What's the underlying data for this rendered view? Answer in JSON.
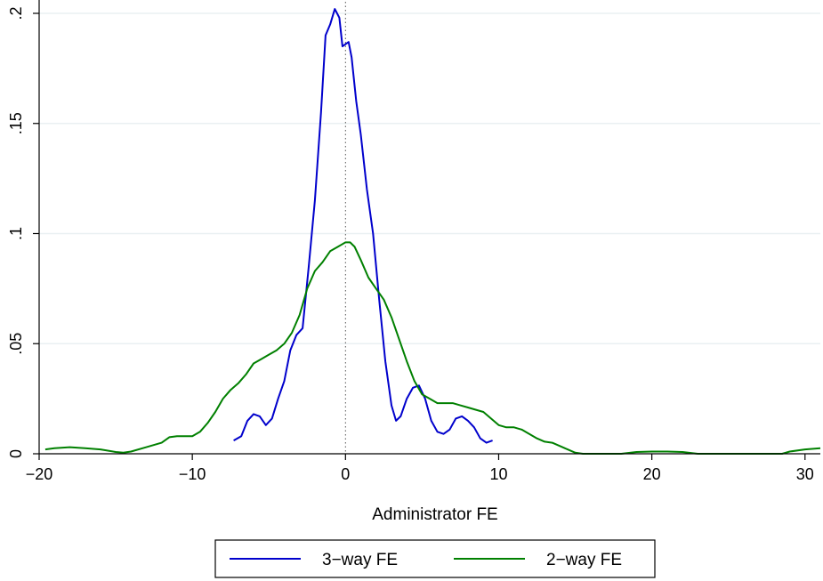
{
  "chart_data": {
    "type": "line",
    "title": "",
    "xlabel": "Administrator FE",
    "ylabel": "",
    "xlim": [
      -20,
      31
    ],
    "ylim": [
      0,
      0.2
    ],
    "grid": true,
    "legend_position": "bottom",
    "x_ticks": [
      -20,
      -10,
      0,
      10,
      20,
      30
    ],
    "x_tick_labels": [
      "−20",
      "−10",
      "0",
      "10",
      "20",
      "30"
    ],
    "y_ticks": [
      0,
      0.05,
      0.1,
      0.15,
      0.2
    ],
    "y_tick_labels": [
      "0",
      ".05",
      ".1",
      ".15",
      ".2"
    ],
    "reference_line_x": 0,
    "series": [
      {
        "name": "3−way FE",
        "color": "#0000cc",
        "points": [
          [
            -7.3,
            0.006
          ],
          [
            -6.8,
            0.008
          ],
          [
            -6.4,
            0.015
          ],
          [
            -6.0,
            0.018
          ],
          [
            -5.6,
            0.017
          ],
          [
            -5.2,
            0.013
          ],
          [
            -4.8,
            0.016
          ],
          [
            -4.4,
            0.025
          ],
          [
            -4.0,
            0.033
          ],
          [
            -3.6,
            0.047
          ],
          [
            -3.2,
            0.054
          ],
          [
            -2.8,
            0.057
          ],
          [
            -2.4,
            0.085
          ],
          [
            -2.0,
            0.115
          ],
          [
            -1.6,
            0.155
          ],
          [
            -1.3,
            0.19
          ],
          [
            -1.0,
            0.195
          ],
          [
            -0.7,
            0.202
          ],
          [
            -0.4,
            0.198
          ],
          [
            -0.2,
            0.185
          ],
          [
            0.0,
            0.186
          ],
          [
            0.2,
            0.187
          ],
          [
            0.4,
            0.18
          ],
          [
            0.7,
            0.16
          ],
          [
            1.0,
            0.145
          ],
          [
            1.4,
            0.12
          ],
          [
            1.8,
            0.1
          ],
          [
            2.2,
            0.07
          ],
          [
            2.6,
            0.042
          ],
          [
            3.0,
            0.022
          ],
          [
            3.3,
            0.015
          ],
          [
            3.6,
            0.017
          ],
          [
            4.0,
            0.025
          ],
          [
            4.4,
            0.03
          ],
          [
            4.8,
            0.031
          ],
          [
            5.2,
            0.025
          ],
          [
            5.6,
            0.015
          ],
          [
            6.0,
            0.01
          ],
          [
            6.4,
            0.009
          ],
          [
            6.8,
            0.011
          ],
          [
            7.2,
            0.016
          ],
          [
            7.6,
            0.017
          ],
          [
            8.0,
            0.015
          ],
          [
            8.4,
            0.012
          ],
          [
            8.8,
            0.007
          ],
          [
            9.2,
            0.005
          ],
          [
            9.6,
            0.006
          ]
        ]
      },
      {
        "name": "2−way FE",
        "color": "#008000",
        "points": [
          [
            -19.6,
            0.002
          ],
          [
            -19.0,
            0.0025
          ],
          [
            -18.0,
            0.003
          ],
          [
            -17.0,
            0.0025
          ],
          [
            -16.0,
            0.002
          ],
          [
            -15.0,
            0.0008
          ],
          [
            -14.5,
            0.0005
          ],
          [
            -14.0,
            0.001
          ],
          [
            -13.0,
            0.003
          ],
          [
            -12.0,
            0.005
          ],
          [
            -11.5,
            0.0075
          ],
          [
            -11.0,
            0.008
          ],
          [
            -10.5,
            0.008
          ],
          [
            -10.0,
            0.008
          ],
          [
            -9.5,
            0.01
          ],
          [
            -9.0,
            0.014
          ],
          [
            -8.5,
            0.019
          ],
          [
            -8.0,
            0.025
          ],
          [
            -7.5,
            0.029
          ],
          [
            -7.0,
            0.032
          ],
          [
            -6.5,
            0.036
          ],
          [
            -6.0,
            0.041
          ],
          [
            -5.5,
            0.043
          ],
          [
            -5.0,
            0.045
          ],
          [
            -4.5,
            0.047
          ],
          [
            -4.0,
            0.05
          ],
          [
            -3.5,
            0.055
          ],
          [
            -3.0,
            0.063
          ],
          [
            -2.5,
            0.075
          ],
          [
            -2.0,
            0.083
          ],
          [
            -1.5,
            0.087
          ],
          [
            -1.0,
            0.092
          ],
          [
            -0.5,
            0.094
          ],
          [
            0.0,
            0.096
          ],
          [
            0.3,
            0.096
          ],
          [
            0.6,
            0.094
          ],
          [
            1.0,
            0.088
          ],
          [
            1.5,
            0.08
          ],
          [
            2.0,
            0.075
          ],
          [
            2.5,
            0.07
          ],
          [
            3.0,
            0.062
          ],
          [
            3.5,
            0.052
          ],
          [
            4.0,
            0.042
          ],
          [
            4.5,
            0.033
          ],
          [
            5.0,
            0.027
          ],
          [
            5.5,
            0.025
          ],
          [
            6.0,
            0.023
          ],
          [
            6.5,
            0.023
          ],
          [
            7.0,
            0.023
          ],
          [
            7.5,
            0.022
          ],
          [
            8.0,
            0.021
          ],
          [
            8.5,
            0.02
          ],
          [
            9.0,
            0.019
          ],
          [
            9.5,
            0.016
          ],
          [
            10.0,
            0.013
          ],
          [
            10.5,
            0.012
          ],
          [
            11.0,
            0.012
          ],
          [
            11.5,
            0.011
          ],
          [
            12.0,
            0.009
          ],
          [
            12.5,
            0.007
          ],
          [
            13.0,
            0.0055
          ],
          [
            13.5,
            0.005
          ],
          [
            14.0,
            0.0035
          ],
          [
            14.5,
            0.002
          ],
          [
            15.0,
            0.0005
          ],
          [
            15.5,
            0.0
          ],
          [
            16.0,
            0.0
          ],
          [
            18.0,
            0.0
          ],
          [
            19.0,
            0.0008
          ],
          [
            20.0,
            0.001
          ],
          [
            21.0,
            0.001
          ],
          [
            22.0,
            0.0008
          ],
          [
            23.0,
            0.0
          ],
          [
            28.5,
            0.0
          ],
          [
            29.0,
            0.001
          ],
          [
            30.0,
            0.002
          ],
          [
            31.0,
            0.0025
          ]
        ]
      }
    ]
  }
}
